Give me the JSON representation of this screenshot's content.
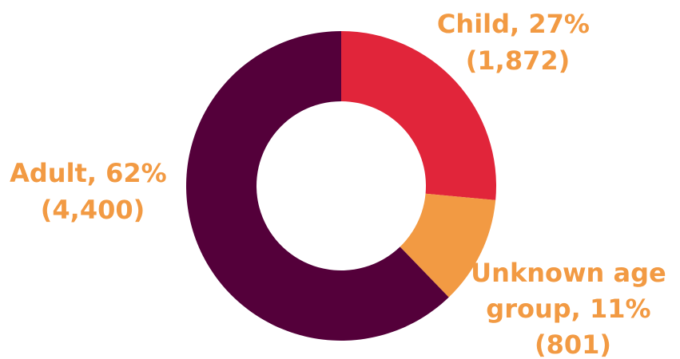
{
  "chart_data": {
    "type": "pie",
    "variant": "donut",
    "slices": [
      {
        "label": "Child",
        "percent": "27%",
        "count": "1,872",
        "value": 1872,
        "color": "#e1253a"
      },
      {
        "label": "Unknown age group",
        "percent": "11%",
        "count": "801",
        "value": 801,
        "color": "#f29a43"
      },
      {
        "label": "Adult",
        "percent": "62%",
        "count": "4,400",
        "value": 4400,
        "color": "#54003a"
      }
    ],
    "label_color": "#f29a43"
  },
  "labels": {
    "child": {
      "line1": "Child, 27%",
      "line2": "(1,872)"
    },
    "unknown": {
      "line1": "Unknown age",
      "line2": "group, 11%",
      "line3": "(801)"
    },
    "adult": {
      "line1": "Adult, 62%",
      "line2": "(4,400)"
    }
  }
}
